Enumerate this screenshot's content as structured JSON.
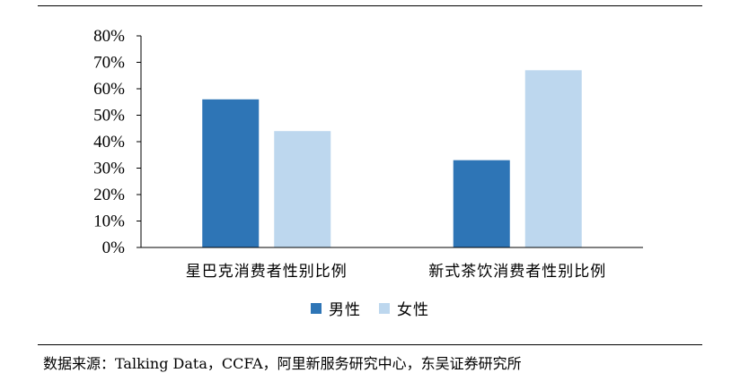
{
  "chart_data": {
    "type": "bar",
    "categories": [
      "星巴克消费者性别比例",
      "新式茶饮消费者性别比例"
    ],
    "series": [
      {
        "name": "男性",
        "values": [
          56,
          33
        ],
        "color": "#2e75b6"
      },
      {
        "name": "女性",
        "values": [
          44,
          67
        ],
        "color": "#bdd7ee"
      }
    ],
    "ylim": [
      0,
      80
    ],
    "yticks": [
      "0%",
      "10%",
      "20%",
      "30%",
      "40%",
      "50%",
      "60%",
      "70%",
      "80%"
    ],
    "legend_position": "bottom",
    "grid": false,
    "title": "",
    "xlabel": "",
    "ylabel": ""
  },
  "footer": {
    "source_text": "数据来源：Talking Data，CCFA，阿里新服务研究中心，东吴证券研究所"
  }
}
